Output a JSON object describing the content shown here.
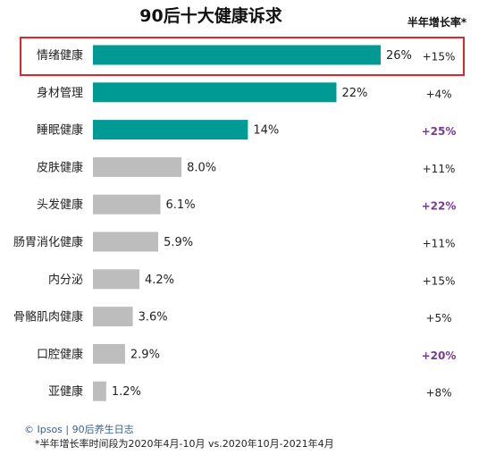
{
  "chart_data": {
    "type": "bar",
    "orientation": "horizontal",
    "title": "90后十大健康诉求",
    "growth_header": "半年增长率*",
    "categories": [
      "情绪健康",
      "身材管理",
      "睡眠健康",
      "皮肤健康",
      "头发健康",
      "肠胃消化健康",
      "内分泌",
      "骨骼肌肉健康",
      "口腔健康",
      "亚健康"
    ],
    "values": [
      26,
      22,
      14,
      8.0,
      6.1,
      5.9,
      4.2,
      3.6,
      2.9,
      1.2
    ],
    "value_labels": [
      "26%",
      "22%",
      "14%",
      "8.0%",
      "6.1%",
      "5.9%",
      "4.2%",
      "3.6%",
      "2.9%",
      "1.2%"
    ],
    "growth": [
      "+15%",
      "+4%",
      "+25%",
      "+11%",
      "+22%",
      "+11%",
      "+15%",
      "+5%",
      "+20%",
      "+8%"
    ],
    "growth_highlight": [
      false,
      false,
      true,
      false,
      true,
      false,
      false,
      false,
      true,
      false
    ],
    "bar_colors": [
      "#009a95",
      "#009a95",
      "#009a95",
      "#bdbdbd",
      "#bdbdbd",
      "#bdbdbd",
      "#bdbdbd",
      "#bdbdbd",
      "#bdbdbd",
      "#bdbdbd"
    ],
    "highlight_color": "#7a3a94",
    "box_color": "#e0262b",
    "xlim": [
      0,
      26
    ],
    "grid": false,
    "source": "© Ipsos | 90后养生日志",
    "footnote": "*半年增长率时间段为2020年4月-10月 vs.2020年10月-2021年4月"
  }
}
